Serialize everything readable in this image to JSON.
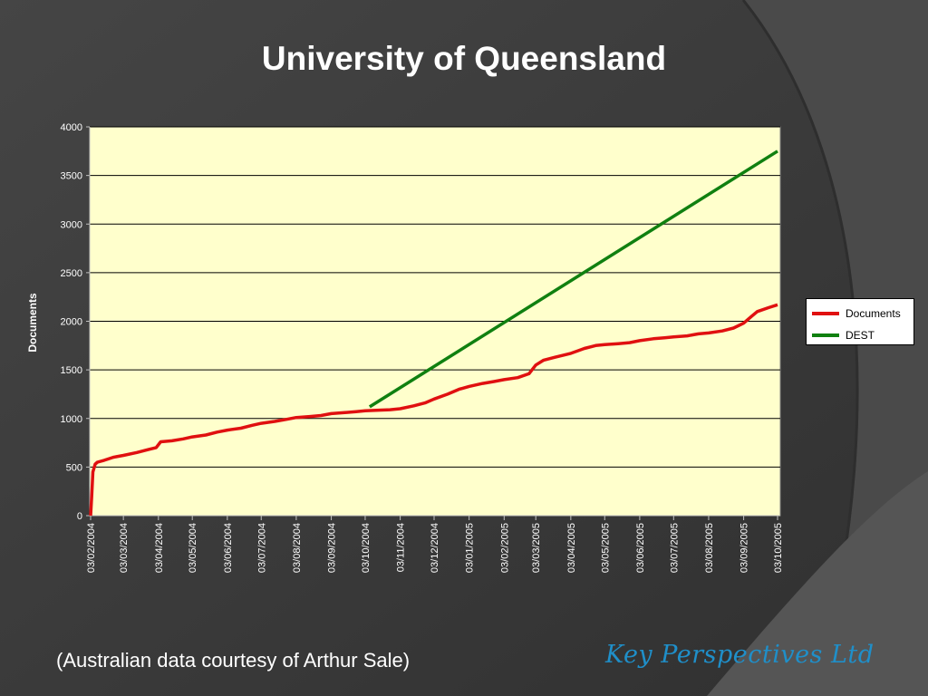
{
  "slide": {
    "title": "University of Queensland",
    "caption": "(Australian data courtesy of Arthur Sale)",
    "brand": "Key Perspectives Ltd"
  },
  "colors": {
    "background": "#3a3a3a",
    "plot_background": "#ffffcc",
    "documents_line": "#e01010",
    "dest_line": "#108010",
    "brand_text": "#1f8fc9"
  },
  "chart_data": {
    "type": "line",
    "title": "University of Queensland",
    "xlabel": "",
    "ylabel": "Documents",
    "ylim": [
      0,
      4000
    ],
    "yticks": [
      0,
      500,
      1000,
      1500,
      2000,
      2500,
      3000,
      3500,
      4000
    ],
    "x_axis_type": "date",
    "x_tick_labels": [
      "03/02/2004",
      "03/03/2004",
      "03/04/2004",
      "03/05/2004",
      "03/06/2004",
      "03/07/2004",
      "03/08/2004",
      "03/09/2004",
      "03/10/2004",
      "03/11/2004",
      "03/12/2004",
      "03/01/2005",
      "03/02/2005",
      "03/03/2005",
      "03/04/2005",
      "03/05/2005",
      "03/06/2005",
      "03/07/2005",
      "03/08/2005",
      "03/09/2005",
      "03/10/2005"
    ],
    "grid": "horizontal",
    "legend_position": "right",
    "series": [
      {
        "name": "Documents",
        "color": "#e01010",
        "x": [
          "2004-02-03",
          "2004-02-04",
          "2004-02-05",
          "2004-02-07",
          "2004-02-09",
          "2004-02-15",
          "2004-02-23",
          "2004-03-03",
          "2004-03-15",
          "2004-03-25",
          "2004-04-01",
          "2004-04-05",
          "2004-04-15",
          "2004-04-25",
          "2004-05-03",
          "2004-05-15",
          "2004-05-25",
          "2004-06-03",
          "2004-06-15",
          "2004-06-25",
          "2004-07-03",
          "2004-07-15",
          "2004-07-25",
          "2004-08-03",
          "2004-08-15",
          "2004-08-25",
          "2004-09-03",
          "2004-09-15",
          "2004-09-25",
          "2004-10-03",
          "2004-10-15",
          "2004-10-25",
          "2004-11-03",
          "2004-11-15",
          "2004-11-25",
          "2004-12-03",
          "2004-12-15",
          "2004-12-25",
          "2005-01-03",
          "2005-01-15",
          "2005-01-25",
          "2005-02-03",
          "2005-02-15",
          "2005-02-25",
          "2005-03-03",
          "2005-03-10",
          "2005-03-20",
          "2005-04-03",
          "2005-04-15",
          "2005-04-25",
          "2005-05-03",
          "2005-05-15",
          "2005-05-25",
          "2005-06-03",
          "2005-06-15",
          "2005-06-25",
          "2005-07-03",
          "2005-07-15",
          "2005-07-25",
          "2005-08-03",
          "2005-08-15",
          "2005-08-25",
          "2005-09-03",
          "2005-09-10",
          "2005-09-15",
          "2005-09-25",
          "2005-10-03"
        ],
        "y": [
          0,
          200,
          450,
          530,
          550,
          570,
          600,
          620,
          650,
          680,
          700,
          760,
          770,
          790,
          810,
          830,
          860,
          880,
          900,
          930,
          950,
          970,
          990,
          1010,
          1020,
          1030,
          1050,
          1060,
          1070,
          1080,
          1085,
          1090,
          1100,
          1130,
          1160,
          1200,
          1250,
          1300,
          1330,
          1360,
          1380,
          1400,
          1420,
          1460,
          1550,
          1600,
          1630,
          1670,
          1720,
          1750,
          1760,
          1770,
          1780,
          1800,
          1820,
          1830,
          1840,
          1850,
          1870,
          1880,
          1900,
          1930,
          1980,
          2050,
          2100,
          2140,
          2170
        ]
      },
      {
        "name": "DEST",
        "color": "#108010",
        "x": [
          "2004-10-07",
          "2005-10-03"
        ],
        "y": [
          1120,
          3750
        ]
      }
    ]
  }
}
